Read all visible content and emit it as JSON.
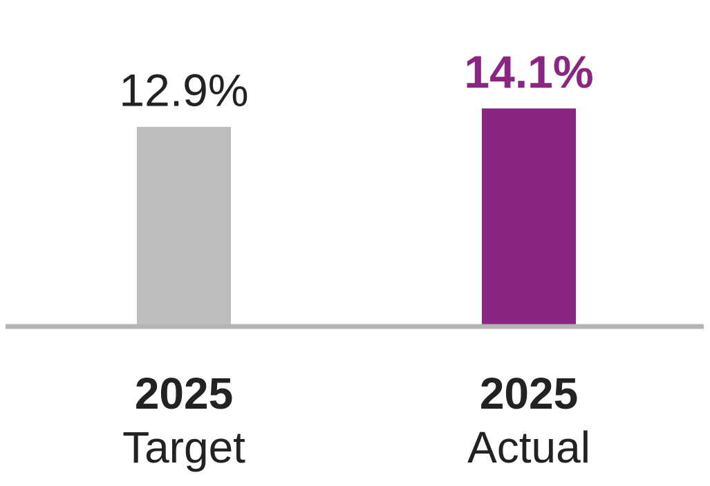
{
  "chart_data": {
    "type": "bar",
    "categories": [
      "2025 Target",
      "2025 Actual"
    ],
    "values": [
      12.9,
      14.1
    ],
    "unit": "%",
    "ylim": [
      0,
      14.6
    ],
    "grid": false,
    "bars": [
      {
        "year": "2025",
        "label": "Target",
        "value": 12.9,
        "value_label": "12.9%",
        "color": "#bcbdbf",
        "value_label_color": "#222222",
        "value_label_bold": false
      },
      {
        "year": "2025",
        "label": "Actual",
        "value": 14.1,
        "value_label": "14.1%",
        "color": "#8a2582",
        "value_label_color": "#8a2582",
        "value_label_bold": true
      }
    ],
    "baseline_color": "#b5b5b5"
  }
}
